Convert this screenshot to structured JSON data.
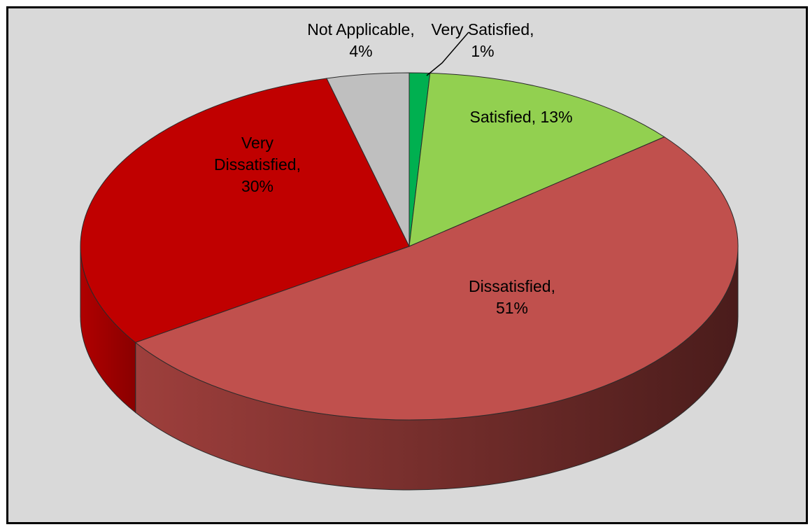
{
  "chart_data": {
    "type": "pie",
    "title": "",
    "slices": [
      {
        "label": "Very Satisfied",
        "value": 1,
        "display": "1%",
        "color": "#00b050"
      },
      {
        "label": "Satisfied",
        "value": 13,
        "display": "13%",
        "color": "#92d050"
      },
      {
        "label": "Dissatisfied",
        "value": 51,
        "display": "51%",
        "color": "#c0504d"
      },
      {
        "label": "Very Dissatisfied",
        "value": 30,
        "display": "30%",
        "color": "#c00000"
      },
      {
        "label": "Not Applicable",
        "value": 4,
        "display": "4%",
        "color": "#bfbfbf"
      }
    ],
    "legend": "none",
    "style": "3d"
  }
}
